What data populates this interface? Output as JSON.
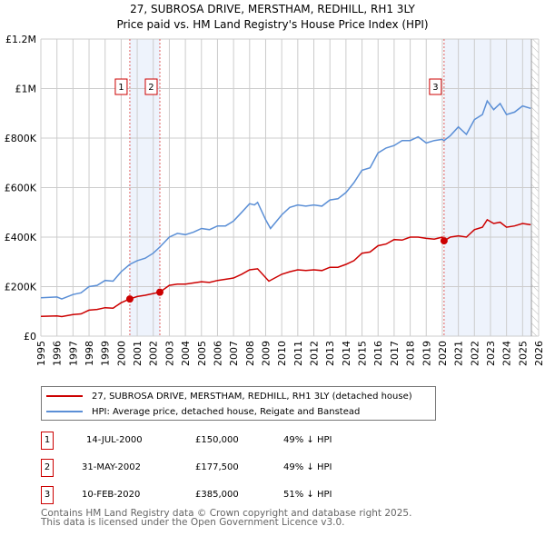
{
  "title": "27, SUBROSA DRIVE, MERSTHAM, REDHILL, RH1 3LY",
  "subtitle": "Price paid vs. HM Land Registry's House Price Index (HPI)",
  "chart_data": {
    "type": "line",
    "title": "27, SUBROSA DRIVE, MERSTHAM, REDHILL, RH1 3LY",
    "subtitle": "Price paid vs. HM Land Registry's House Price Index (HPI)",
    "xlim": [
      1995,
      2026
    ],
    "ylim": [
      0,
      1200000
    ],
    "y_ticks": [
      0,
      200000,
      400000,
      600000,
      800000,
      1000000,
      1200000
    ],
    "y_tick_labels": [
      "£0",
      "£200K",
      "£400K",
      "£600K",
      "£800K",
      "£1M",
      "£1.2M"
    ],
    "x_ticks": [
      "1995",
      "1996",
      "1997",
      "1998",
      "1999",
      "2000",
      "2001",
      "2002",
      "2003",
      "2004",
      "2005",
      "2006",
      "2007",
      "2008",
      "2009",
      "2010",
      "2011",
      "2012",
      "2013",
      "2014",
      "2015",
      "2016",
      "2017",
      "2018",
      "2019",
      "2020",
      "2021",
      "2022",
      "2023",
      "2024",
      "2025",
      "2026"
    ],
    "grid": true,
    "colors": {
      "property": "#cc0000",
      "hpi": "#5b8fd6",
      "shade": "#eef3fc"
    },
    "shaded_periods": [
      [
        2000.54,
        2002.41
      ],
      [
        2020.11,
        2025.55
      ]
    ],
    "forecast_hatch_from": 2025.55,
    "series": [
      {
        "name": "27, SUBROSA DRIVE, MERSTHAM, REDHILL, RH1 3LY (detached house)",
        "x": [
          1995,
          1996,
          1996.3,
          1997,
          1997.5,
          1998,
          1998.5,
          1999,
          1999.5,
          2000,
          2000.54,
          2001,
          2001.5,
          2002,
          2002.41,
          2003,
          2003.5,
          2004,
          2005,
          2005.5,
          2006,
          2007,
          2007.5,
          2008,
          2008.5,
          2009.2,
          2010,
          2010.5,
          2011,
          2011.5,
          2012,
          2012.5,
          2013,
          2013.5,
          2014,
          2014.5,
          2015,
          2015.5,
          2016,
          2016.5,
          2017,
          2017.5,
          2018,
          2018.5,
          2019,
          2019.5,
          2020,
          2020.11,
          2020.5,
          2021,
          2021.5,
          2022,
          2022.5,
          2022.8,
          2023.2,
          2023.6,
          2024,
          2024.5,
          2025,
          2025.5
        ],
        "values": [
          80000,
          82000,
          79000,
          87000,
          90000,
          105000,
          108000,
          115000,
          113000,
          135000,
          150000,
          160000,
          165000,
          172000,
          177500,
          205000,
          210000,
          210000,
          220000,
          217000,
          225000,
          235000,
          250000,
          268000,
          272000,
          222000,
          250000,
          260000,
          268000,
          265000,
          268000,
          265000,
          278000,
          278000,
          290000,
          305000,
          335000,
          340000,
          365000,
          372000,
          390000,
          388000,
          400000,
          400000,
          395000,
          392000,
          400000,
          385000,
          400000,
          405000,
          400000,
          430000,
          440000,
          470000,
          455000,
          460000,
          440000,
          445000,
          455000,
          450000
        ]
      },
      {
        "name": "HPI: Average price, detached house, Reigate and Banstead",
        "x": [
          1995,
          1996,
          1996.3,
          1997,
          1997.5,
          1998,
          1998.5,
          1999,
          1999.5,
          2000,
          2000.54,
          2001,
          2001.5,
          2002,
          2002.41,
          2003,
          2003.5,
          2004,
          2004.5,
          2005,
          2005.5,
          2006,
          2006.5,
          2007,
          2007.5,
          2008,
          2008.3,
          2008.5,
          2009,
          2009.3,
          2010,
          2010.5,
          2011,
          2011.5,
          2012,
          2012.5,
          2013,
          2013.5,
          2014,
          2014.5,
          2015,
          2015.5,
          2016,
          2016.5,
          2017,
          2017.5,
          2018,
          2018.5,
          2019,
          2019.5,
          2020,
          2020.11,
          2020.5,
          2021,
          2021.5,
          2022,
          2022.5,
          2022.8,
          2023.2,
          2023.6,
          2024,
          2024.5,
          2025,
          2025.5
        ],
        "values": [
          155000,
          158000,
          150000,
          168000,
          175000,
          200000,
          205000,
          225000,
          222000,
          260000,
          290000,
          305000,
          315000,
          335000,
          360000,
          400000,
          415000,
          410000,
          420000,
          435000,
          430000,
          445000,
          445000,
          465000,
          500000,
          535000,
          530000,
          540000,
          470000,
          435000,
          490000,
          520000,
          530000,
          525000,
          530000,
          525000,
          550000,
          555000,
          580000,
          620000,
          670000,
          680000,
          740000,
          760000,
          770000,
          790000,
          790000,
          805000,
          780000,
          790000,
          795000,
          790000,
          810000,
          845000,
          815000,
          875000,
          895000,
          950000,
          915000,
          940000,
          895000,
          905000,
          930000,
          920000
        ]
      }
    ],
    "annotations": [
      {
        "label": "1",
        "x": 2000.54,
        "y": 150000
      },
      {
        "label": "2",
        "x": 2002.41,
        "y": 177500
      },
      {
        "label": "3",
        "x": 2020.11,
        "y": 385000
      }
    ]
  },
  "legend": [
    {
      "label": "27, SUBROSA DRIVE, MERSTHAM, REDHILL, RH1 3LY (detached house)",
      "color": "#cc0000"
    },
    {
      "label": "HPI: Average price, detached house, Reigate and Banstead",
      "color": "#5b8fd6"
    }
  ],
  "transactions": [
    {
      "num": "1",
      "date": "14-JUL-2000",
      "price": "£150,000",
      "hpi": "49% ↓ HPI"
    },
    {
      "num": "2",
      "date": "31-MAY-2002",
      "price": "£177,500",
      "hpi": "49% ↓ HPI"
    },
    {
      "num": "3",
      "date": "10-FEB-2020",
      "price": "£385,000",
      "hpi": "51% ↓ HPI"
    }
  ],
  "footer": {
    "line1": "Contains HM Land Registry data © Crown copyright and database right 2025.",
    "line2": "This data is licensed under the Open Government Licence v3.0."
  }
}
